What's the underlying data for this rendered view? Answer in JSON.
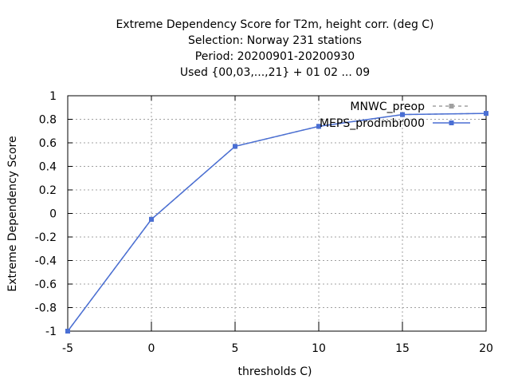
{
  "chart_data": {
    "type": "line",
    "title_lines": [
      "Extreme Dependency Score  for T2m, height corr. (deg C)",
      "Selection: Norway    231 stations",
      "Period: 20200901-20200930",
      "Used {00,03,...,21} + 01 02 ... 09"
    ],
    "xlabel": "thresholds C)",
    "ylabel": "Extreme Dependency Score",
    "xlim": [
      -5,
      20
    ],
    "ylim": [
      -1,
      1
    ],
    "xticks": [
      "-5",
      "0",
      "5",
      "10",
      "15",
      "20"
    ],
    "yticks": [
      "-1",
      "-0.8",
      "-0.6",
      "-0.4",
      "-0.2",
      "0",
      "0.2",
      "0.4",
      "0.6",
      "0.8",
      "1"
    ],
    "grid": true,
    "legend_position": "top-right",
    "series": [
      {
        "name": "MNWC_preop",
        "color": "#a0a0a0",
        "dashed": true,
        "x": [
          -5,
          0,
          5,
          10,
          15,
          20
        ],
        "y": [
          -1.0,
          -0.05,
          0.57,
          0.74,
          0.84,
          0.85
        ]
      },
      {
        "name": "MEPS_prodmbr000",
        "color": "#4a6fd4",
        "dashed": false,
        "x": [
          -5,
          0,
          5,
          10,
          15,
          20
        ],
        "y": [
          -1.0,
          -0.05,
          0.57,
          0.74,
          0.84,
          0.85
        ]
      }
    ]
  }
}
